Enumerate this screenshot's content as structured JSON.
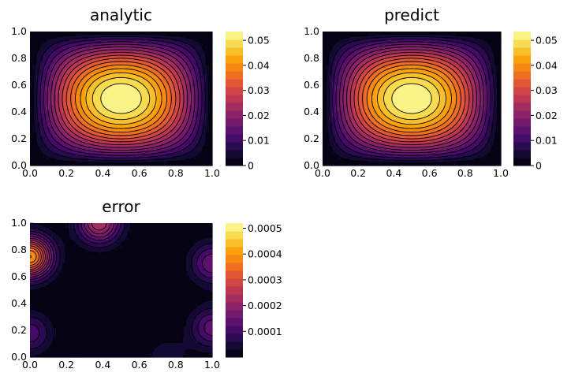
{
  "chart_data": [
    {
      "type": "heatmap",
      "title": "analytic",
      "xlim": [
        0,
        1
      ],
      "ylim": [
        0,
        1
      ],
      "x_ticks": [
        "0.0",
        "0.2",
        "0.4",
        "0.6",
        "0.8",
        "1.0"
      ],
      "y_ticks": [
        "0.0",
        "0.2",
        "0.4",
        "0.6",
        "0.8",
        "1.0"
      ],
      "colorbar_range": [
        0,
        0.0535
      ],
      "colorbar_ticks": [
        {
          "value": 0,
          "label": "0"
        },
        {
          "value": 0.01,
          "label": "0.01"
        },
        {
          "value": 0.02,
          "label": "0.02"
        },
        {
          "value": 0.03,
          "label": "0.03"
        },
        {
          "value": 0.04,
          "label": "0.04"
        },
        {
          "value": 0.05,
          "label": "0.05"
        }
      ],
      "field": "0.0536*sin(pi x)*sin(pi y)",
      "levels": 17,
      "colormap": "inferno"
    },
    {
      "type": "heatmap",
      "title": "predict",
      "xlim": [
        0,
        1
      ],
      "ylim": [
        0,
        1
      ],
      "x_ticks": [
        "0.0",
        "0.2",
        "0.4",
        "0.6",
        "0.8",
        "1.0"
      ],
      "y_ticks": [
        "0.0",
        "0.2",
        "0.4",
        "0.6",
        "0.8",
        "1.0"
      ],
      "colorbar_range": [
        0,
        0.0535
      ],
      "colorbar_ticks": [
        {
          "value": 0,
          "label": "0"
        },
        {
          "value": 0.01,
          "label": "0.01"
        },
        {
          "value": 0.02,
          "label": "0.02"
        },
        {
          "value": 0.03,
          "label": "0.03"
        },
        {
          "value": 0.04,
          "label": "0.04"
        },
        {
          "value": 0.05,
          "label": "0.05"
        }
      ],
      "field": "0.0536*sin(pi x)*sin(pi y)",
      "levels": 17,
      "colormap": "inferno"
    },
    {
      "type": "heatmap",
      "title": "error",
      "xlim": [
        0,
        1
      ],
      "ylim": [
        0,
        1
      ],
      "x_ticks": [
        "0.0",
        "0.2",
        "0.4",
        "0.6",
        "0.8",
        "1.0"
      ],
      "y_ticks": [
        "0.0",
        "0.2",
        "0.4",
        "0.6",
        "0.8",
        "1.0"
      ],
      "colorbar_range": [
        0,
        0.00052
      ],
      "colorbar_ticks": [
        {
          "value": 0.0001,
          "label": "0.0001"
        },
        {
          "value": 0.0002,
          "label": "0.0002"
        },
        {
          "value": 0.0003,
          "label": "0.0003"
        },
        {
          "value": 0.0004,
          "label": "0.0004"
        },
        {
          "value": 0.0005,
          "label": "0.0005"
        }
      ],
      "error_peaks": [
        {
          "x": 0.0,
          "y": 0.75,
          "value": 0.0004
        },
        {
          "x": 0.38,
          "y": 1.0,
          "value": 0.00024
        },
        {
          "x": 1.0,
          "y": 0.7,
          "value": 0.00015
        },
        {
          "x": 1.0,
          "y": 0.22,
          "value": 0.00014
        },
        {
          "x": 0.0,
          "y": 0.18,
          "value": 0.00011
        },
        {
          "x": 0.75,
          "y": 0.0,
          "value": 5e-05
        }
      ],
      "levels": 17,
      "colormap": "inferno"
    }
  ]
}
